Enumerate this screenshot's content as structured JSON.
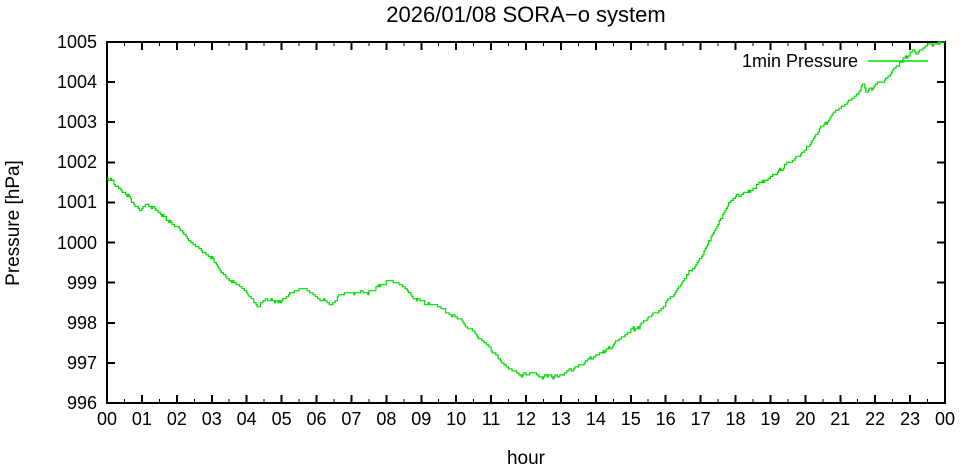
{
  "colors": {
    "line": "#00dd00",
    "axis": "#000000",
    "background": "#ffffff",
    "text": "#000000"
  },
  "chart_data": {
    "type": "line",
    "title": "2026/01/08 SORA−o system",
    "xlabel": "hour",
    "ylabel": "Pressure [hPa]",
    "xlim": [
      0,
      24
    ],
    "ylim": [
      996,
      1005
    ],
    "grid": false,
    "legend_label": "1min Pressure",
    "legend_position": "top-right",
    "x_major_tick_step_hours": 1,
    "x_minor_tick_step_hours": 0.5,
    "y_major_tick_step": 1,
    "x_tick_labels": [
      "00",
      "01",
      "02",
      "03",
      "04",
      "05",
      "06",
      "07",
      "08",
      "09",
      "10",
      "11",
      "12",
      "13",
      "14",
      "15",
      "16",
      "17",
      "18",
      "19",
      "20",
      "21",
      "22",
      "23",
      "00"
    ],
    "y_tick_labels": [
      "996",
      "997",
      "998",
      "999",
      "1000",
      "1001",
      "1002",
      "1003",
      "1004",
      "1005"
    ],
    "series": [
      {
        "name": "1min Pressure",
        "color": "#00dd00",
        "sampling": "1-minute, ~0.05 hPa quantization (step-like trace)",
        "points": [
          [
            0.0,
            1001.65
          ],
          [
            0.1,
            1001.58
          ],
          [
            0.25,
            1001.42
          ],
          [
            0.4,
            1001.3
          ],
          [
            0.55,
            1001.2
          ],
          [
            0.7,
            1001.05
          ],
          [
            0.85,
            1000.9
          ],
          [
            0.95,
            1000.8
          ],
          [
            1.1,
            1000.9
          ],
          [
            1.25,
            1000.92
          ],
          [
            1.4,
            1000.8
          ],
          [
            1.55,
            1000.68
          ],
          [
            1.7,
            1000.58
          ],
          [
            1.85,
            1000.48
          ],
          [
            2.0,
            1000.38
          ],
          [
            2.15,
            1000.25
          ],
          [
            2.3,
            1000.1
          ],
          [
            2.45,
            1000.0
          ],
          [
            2.6,
            999.9
          ],
          [
            2.75,
            999.8
          ],
          [
            2.9,
            999.68
          ],
          [
            3.05,
            999.52
          ],
          [
            3.2,
            999.35
          ],
          [
            3.35,
            999.2
          ],
          [
            3.5,
            999.05
          ],
          [
            3.65,
            998.95
          ],
          [
            3.8,
            998.9
          ],
          [
            3.95,
            998.78
          ],
          [
            4.1,
            998.6
          ],
          [
            4.25,
            998.45
          ],
          [
            4.35,
            998.4
          ],
          [
            4.5,
            998.55
          ],
          [
            4.65,
            998.6
          ],
          [
            4.8,
            998.55
          ],
          [
            4.95,
            998.55
          ],
          [
            5.1,
            998.65
          ],
          [
            5.25,
            998.72
          ],
          [
            5.4,
            998.78
          ],
          [
            5.55,
            998.82
          ],
          [
            5.7,
            998.86
          ],
          [
            5.85,
            998.74
          ],
          [
            6.0,
            998.66
          ],
          [
            6.15,
            998.58
          ],
          [
            6.3,
            998.52
          ],
          [
            6.45,
            998.5
          ],
          [
            6.6,
            998.64
          ],
          [
            6.75,
            998.74
          ],
          [
            6.95,
            998.76
          ],
          [
            7.15,
            998.74
          ],
          [
            7.3,
            998.82
          ],
          [
            7.45,
            998.74
          ],
          [
            7.6,
            998.82
          ],
          [
            7.75,
            998.9
          ],
          [
            7.9,
            998.98
          ],
          [
            8.05,
            999.04
          ],
          [
            8.2,
            999.05
          ],
          [
            8.35,
            999.0
          ],
          [
            8.5,
            998.92
          ],
          [
            8.65,
            998.75
          ],
          [
            8.8,
            998.6
          ],
          [
            8.95,
            998.54
          ],
          [
            9.1,
            998.5
          ],
          [
            9.25,
            998.46
          ],
          [
            9.4,
            998.4
          ],
          [
            9.55,
            998.36
          ],
          [
            9.7,
            998.28
          ],
          [
            9.85,
            998.22
          ],
          [
            10.0,
            998.15
          ],
          [
            10.2,
            998.0
          ],
          [
            10.4,
            997.85
          ],
          [
            10.6,
            997.65
          ],
          [
            10.8,
            997.5
          ],
          [
            11.0,
            997.32
          ],
          [
            11.2,
            997.15
          ],
          [
            11.4,
            996.95
          ],
          [
            11.6,
            996.8
          ],
          [
            11.75,
            996.72
          ],
          [
            11.9,
            996.68
          ],
          [
            12.05,
            996.74
          ],
          [
            12.2,
            996.72
          ],
          [
            12.35,
            996.7
          ],
          [
            12.5,
            996.65
          ],
          [
            12.65,
            996.72
          ],
          [
            12.8,
            996.63
          ],
          [
            12.95,
            996.7
          ],
          [
            13.1,
            996.74
          ],
          [
            13.25,
            996.82
          ],
          [
            13.4,
            996.88
          ],
          [
            13.55,
            996.95
          ],
          [
            13.7,
            997.03
          ],
          [
            13.85,
            997.1
          ],
          [
            14.0,
            997.18
          ],
          [
            14.15,
            997.22
          ],
          [
            14.3,
            997.3
          ],
          [
            14.45,
            997.42
          ],
          [
            14.6,
            997.52
          ],
          [
            14.75,
            997.62
          ],
          [
            14.9,
            997.74
          ],
          [
            15.05,
            997.84
          ],
          [
            15.2,
            997.9
          ],
          [
            15.35,
            998.0
          ],
          [
            15.5,
            998.1
          ],
          [
            15.65,
            998.2
          ],
          [
            15.8,
            998.3
          ],
          [
            15.95,
            998.42
          ],
          [
            16.1,
            998.58
          ],
          [
            16.25,
            998.75
          ],
          [
            16.4,
            998.95
          ],
          [
            16.55,
            999.12
          ],
          [
            16.7,
            999.28
          ],
          [
            16.85,
            999.42
          ],
          [
            17.0,
            999.62
          ],
          [
            17.15,
            999.85
          ],
          [
            17.3,
            1000.1
          ],
          [
            17.45,
            1000.38
          ],
          [
            17.6,
            1000.65
          ],
          [
            17.75,
            1000.9
          ],
          [
            17.9,
            1001.05
          ],
          [
            18.05,
            1001.15
          ],
          [
            18.2,
            1001.2
          ],
          [
            18.35,
            1001.25
          ],
          [
            18.5,
            1001.35
          ],
          [
            18.65,
            1001.45
          ],
          [
            18.8,
            1001.52
          ],
          [
            18.95,
            1001.62
          ],
          [
            19.1,
            1001.72
          ],
          [
            19.25,
            1001.8
          ],
          [
            19.4,
            1001.9
          ],
          [
            19.55,
            1002.0
          ],
          [
            19.7,
            1002.1
          ],
          [
            19.85,
            1002.2
          ],
          [
            20.0,
            1002.32
          ],
          [
            20.15,
            1002.5
          ],
          [
            20.3,
            1002.68
          ],
          [
            20.45,
            1002.88
          ],
          [
            20.6,
            1003.0
          ],
          [
            20.75,
            1003.15
          ],
          [
            20.9,
            1003.3
          ],
          [
            21.05,
            1003.4
          ],
          [
            21.2,
            1003.48
          ],
          [
            21.35,
            1003.58
          ],
          [
            21.5,
            1003.72
          ],
          [
            21.65,
            1003.95
          ],
          [
            21.75,
            1003.76
          ],
          [
            21.9,
            1003.85
          ],
          [
            22.05,
            1003.98
          ],
          [
            22.2,
            1004.02
          ],
          [
            22.35,
            1004.1
          ],
          [
            22.5,
            1004.3
          ],
          [
            22.65,
            1004.45
          ],
          [
            22.8,
            1004.55
          ],
          [
            22.95,
            1004.65
          ],
          [
            23.1,
            1004.8
          ],
          [
            23.2,
            1004.68
          ],
          [
            23.35,
            1004.85
          ],
          [
            23.5,
            1004.95
          ],
          [
            23.7,
            1004.95
          ],
          [
            23.85,
            1004.98
          ],
          [
            24.0,
            1005.05
          ]
        ]
      }
    ]
  }
}
